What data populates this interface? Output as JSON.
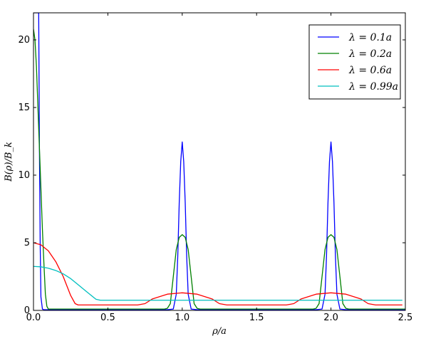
{
  "chart_data": {
    "type": "line",
    "title": "",
    "xlabel": "ρ/a",
    "ylabel": "B(ρ)/B_k",
    "xlim": [
      0,
      2.5
    ],
    "ylim": [
      0,
      22
    ],
    "xticks": [
      0.0,
      0.5,
      1.0,
      1.5,
      2.0,
      2.5
    ],
    "xtick_labels": [
      "0.0",
      "0.5",
      "1.0",
      "1.5",
      "2.0",
      "2.5"
    ],
    "yticks": [
      0,
      5,
      10,
      15,
      20
    ],
    "ytick_labels": [
      "0",
      "5",
      "10",
      "15",
      "20"
    ],
    "grid": false,
    "legend_position": "top-right",
    "series": [
      {
        "name": "λ = 0.1a",
        "color": "#0000ff",
        "x": [
          0.0,
          0.015,
          0.025,
          0.035,
          0.04,
          0.045,
          0.05,
          0.06,
          0.07,
          0.08,
          0.1,
          0.5,
          0.9,
          0.94,
          0.96,
          0.97,
          0.98,
          0.99,
          1.0,
          1.01,
          1.02,
          1.03,
          1.04,
          1.06,
          1.1,
          1.5,
          1.9,
          1.94,
          1.96,
          1.97,
          1.98,
          1.99,
          2.0,
          2.01,
          2.02,
          2.03,
          2.04,
          2.06,
          2.1,
          2.5
        ],
        "y": [
          22,
          22,
          22,
          22,
          12,
          5,
          1,
          0.1,
          0.05,
          0.05,
          0.05,
          0.05,
          0.05,
          0.1,
          1.2,
          4,
          8,
          11,
          12.45,
          11,
          8,
          4,
          1.2,
          0.1,
          0.05,
          0.05,
          0.05,
          0.1,
          1.2,
          4,
          8,
          11,
          12.45,
          11,
          8,
          4,
          1.2,
          0.1,
          0.05,
          0.05
        ]
      },
      {
        "name": "λ = 0.2a",
        "color": "#008000",
        "x": [
          0.0,
          0.01,
          0.02,
          0.03,
          0.04,
          0.05,
          0.06,
          0.07,
          0.08,
          0.09,
          0.1,
          0.12,
          0.5,
          0.88,
          0.9,
          0.92,
          0.94,
          0.96,
          0.98,
          1.0,
          1.02,
          1.04,
          1.06,
          1.08,
          1.1,
          1.12,
          1.5,
          1.88,
          1.9,
          1.92,
          1.94,
          1.96,
          1.98,
          2.0,
          2.02,
          2.04,
          2.06,
          2.08,
          2.1,
          2.12,
          2.5
        ],
        "y": [
          20.8,
          20,
          18,
          15,
          12,
          9,
          6,
          3.5,
          1.2,
          0.3,
          0.1,
          0.1,
          0.1,
          0.1,
          0.15,
          0.5,
          2.5,
          4.5,
          5.4,
          5.6,
          5.4,
          4.5,
          2.5,
          0.5,
          0.15,
          0.1,
          0.1,
          0.1,
          0.15,
          0.5,
          2.5,
          4.5,
          5.4,
          5.6,
          5.4,
          4.5,
          2.5,
          0.5,
          0.15,
          0.1,
          0.1
        ]
      },
      {
        "name": "λ = 0.6a",
        "color": "#ff0000",
        "x": [
          0.0,
          0.05,
          0.1,
          0.15,
          0.2,
          0.25,
          0.28,
          0.3,
          0.5,
          0.7,
          0.75,
          0.8,
          0.9,
          1.0,
          1.1,
          1.2,
          1.25,
          1.3,
          1.5,
          1.7,
          1.75,
          1.8,
          1.9,
          2.0,
          2.1,
          2.2,
          2.25,
          2.3,
          2.48
        ],
        "y": [
          5.0,
          4.85,
          4.4,
          3.6,
          2.5,
          1.1,
          0.5,
          0.4,
          0.4,
          0.4,
          0.5,
          0.85,
          1.2,
          1.3,
          1.2,
          0.85,
          0.5,
          0.4,
          0.4,
          0.4,
          0.5,
          0.85,
          1.2,
          1.3,
          1.2,
          0.85,
          0.5,
          0.4,
          0.4
        ]
      },
      {
        "name": "λ = 0.99a",
        "color": "#00bfbf",
        "x": [
          0.0,
          0.05,
          0.1,
          0.15,
          0.2,
          0.25,
          0.3,
          0.35,
          0.4,
          0.42,
          0.45,
          0.5,
          1.0,
          1.5,
          2.0,
          2.48
        ],
        "y": [
          3.25,
          3.22,
          3.12,
          2.95,
          2.7,
          2.35,
          1.9,
          1.45,
          1.0,
          0.82,
          0.75,
          0.75,
          0.75,
          0.75,
          0.75,
          0.75
        ]
      }
    ]
  },
  "legend": {
    "entries": [
      "λ = 0.1a",
      "λ = 0.2a",
      "λ = 0.6a",
      "λ = 0.99a"
    ]
  }
}
